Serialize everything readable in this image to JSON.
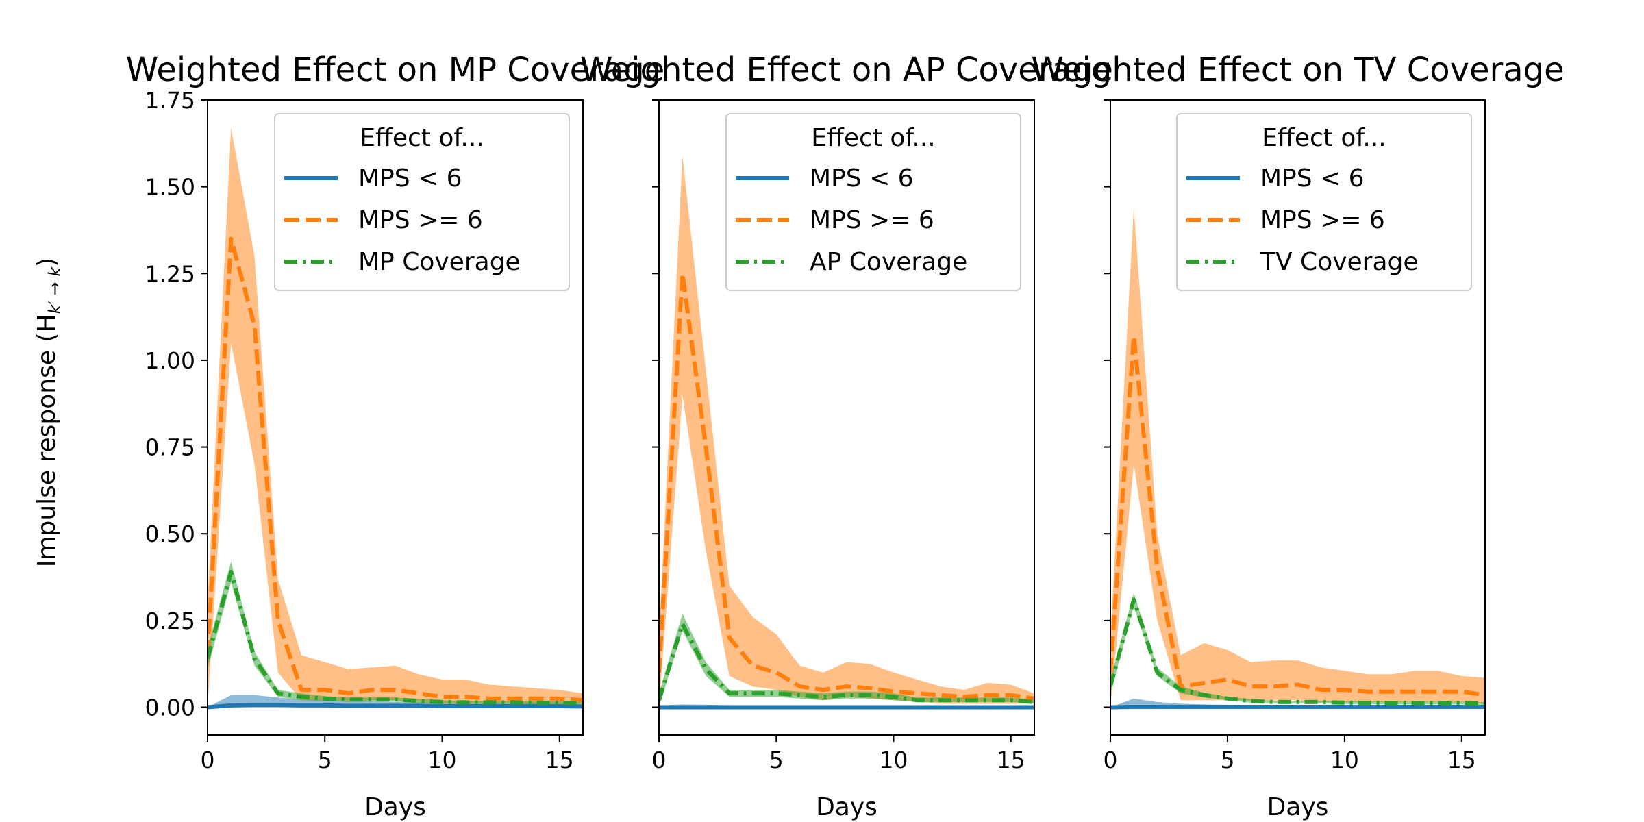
{
  "figure": {
    "ylabel": "Impulse response (H",
    "ylabel_sub": "k′ → k",
    "ylabel_close": ")"
  },
  "chart_data": [
    {
      "type": "line",
      "title": "Weighted Effect on MP Coverage",
      "xlabel": "Days",
      "ylabel": "Impulse response (H k' → k)",
      "xlim": [
        0,
        16
      ],
      "ylim": [
        -0.08,
        1.75
      ],
      "xticks": [
        "0",
        "5",
        "10",
        "15"
      ],
      "yticks": [
        "0.00",
        "0.25",
        "0.50",
        "0.75",
        "1.00",
        "1.25",
        "1.50",
        "1.75"
      ],
      "legend": {
        "title": "Effect of...",
        "position": "top-right"
      },
      "x": [
        0,
        1,
        2,
        3,
        4,
        5,
        6,
        7,
        8,
        9,
        10,
        11,
        12,
        13,
        14,
        15,
        16
      ],
      "series": [
        {
          "name": "MPS < 6",
          "style": "solid",
          "color": "#1f77b4",
          "values": [
            0.0,
            0.005,
            0.006,
            0.006,
            0.005,
            0.005,
            0.004,
            0.004,
            0.004,
            0.004,
            0.003,
            0.003,
            0.003,
            0.003,
            0.003,
            0.003,
            0.002
          ],
          "lower": [
            0.0,
            0.0,
            0.0,
            0.0,
            0.0,
            0.0,
            0.0,
            0.0,
            0.0,
            0.0,
            0.0,
            0.0,
            0.0,
            0.0,
            0.0,
            0.0,
            0.0
          ],
          "upper": [
            0.0,
            0.035,
            0.035,
            0.028,
            0.022,
            0.02,
            0.018,
            0.016,
            0.015,
            0.014,
            0.013,
            0.012,
            0.012,
            0.011,
            0.011,
            0.01,
            0.009
          ]
        },
        {
          "name": "MPS >= 6",
          "style": "dashed",
          "color": "#ff7f0e",
          "values": [
            0.15,
            1.35,
            1.1,
            0.25,
            0.05,
            0.05,
            0.04,
            0.05,
            0.05,
            0.04,
            0.03,
            0.03,
            0.025,
            0.025,
            0.025,
            0.025,
            0.02
          ],
          "lower": [
            0.0,
            1.05,
            0.7,
            0.1,
            0.02,
            0.02,
            0.015,
            0.02,
            0.02,
            0.015,
            0.01,
            0.01,
            0.01,
            0.01,
            0.01,
            0.01,
            0.01
          ],
          "upper": [
            0.3,
            1.67,
            1.3,
            0.37,
            0.15,
            0.13,
            0.11,
            0.115,
            0.12,
            0.095,
            0.08,
            0.08,
            0.065,
            0.06,
            0.055,
            0.05,
            0.04
          ]
        },
        {
          "name": "MP Coverage",
          "style": "dashdot",
          "color": "#2ca02c",
          "values": [
            0.14,
            0.39,
            0.14,
            0.04,
            0.03,
            0.025,
            0.022,
            0.022,
            0.022,
            0.018,
            0.015,
            0.014,
            0.014,
            0.014,
            0.013,
            0.013,
            0.012
          ],
          "lower": [
            0.11,
            0.36,
            0.12,
            0.03,
            0.02,
            0.018,
            0.016,
            0.016,
            0.016,
            0.013,
            0.011,
            0.01,
            0.01,
            0.01,
            0.009,
            0.009,
            0.008
          ],
          "upper": [
            0.17,
            0.42,
            0.16,
            0.05,
            0.04,
            0.032,
            0.028,
            0.028,
            0.028,
            0.024,
            0.02,
            0.018,
            0.018,
            0.018,
            0.017,
            0.017,
            0.016
          ]
        }
      ]
    },
    {
      "type": "line",
      "title": "Weighted Effect on AP Coverage",
      "xlabel": "Days",
      "xlim": [
        0,
        16
      ],
      "ylim": [
        -0.08,
        1.75
      ],
      "xticks": [
        "0",
        "5",
        "10",
        "15"
      ],
      "legend": {
        "title": "Effect of...",
        "position": "top-right"
      },
      "x": [
        0,
        1,
        2,
        3,
        4,
        5,
        6,
        7,
        8,
        9,
        10,
        11,
        12,
        13,
        14,
        15,
        16
      ],
      "series": [
        {
          "name": "MPS < 6",
          "style": "solid",
          "color": "#1f77b4",
          "values": [
            0.0,
            0.0,
            0.0,
            0.0,
            0.0,
            0.0,
            0.0,
            0.0,
            0.0,
            0.0,
            0.0,
            0.0,
            0.0,
            0.0,
            0.0,
            0.0,
            0.0
          ],
          "lower": [
            0.0,
            0.0,
            0.0,
            0.0,
            0.0,
            0.0,
            0.0,
            0.0,
            0.0,
            0.0,
            0.0,
            0.0,
            0.0,
            0.0,
            0.0,
            0.0,
            0.0
          ],
          "upper": [
            0.005,
            0.008,
            0.007,
            0.006,
            0.005,
            0.005,
            0.005,
            0.004,
            0.004,
            0.004,
            0.004,
            0.004,
            0.003,
            0.003,
            0.003,
            0.003,
            0.003
          ]
        },
        {
          "name": "MPS >= 6",
          "style": "dashed",
          "color": "#ff7f0e",
          "values": [
            0.1,
            1.25,
            0.75,
            0.2,
            0.12,
            0.1,
            0.06,
            0.05,
            0.06,
            0.055,
            0.045,
            0.04,
            0.035,
            0.03,
            0.035,
            0.035,
            0.025
          ],
          "lower": [
            0.0,
            0.9,
            0.45,
            0.09,
            0.06,
            0.05,
            0.03,
            0.02,
            0.03,
            0.025,
            0.02,
            0.015,
            0.01,
            0.01,
            0.01,
            0.01,
            0.01
          ],
          "upper": [
            0.2,
            1.59,
            0.97,
            0.35,
            0.26,
            0.21,
            0.12,
            0.1,
            0.13,
            0.125,
            0.1,
            0.08,
            0.06,
            0.05,
            0.07,
            0.065,
            0.04
          ]
        },
        {
          "name": "AP Coverage",
          "style": "dashdot",
          "color": "#2ca02c",
          "values": [
            0.02,
            0.24,
            0.11,
            0.04,
            0.04,
            0.04,
            0.035,
            0.03,
            0.035,
            0.035,
            0.03,
            0.02,
            0.02,
            0.02,
            0.02,
            0.02,
            0.015
          ],
          "lower": [
            0.0,
            0.22,
            0.09,
            0.03,
            0.03,
            0.03,
            0.025,
            0.02,
            0.025,
            0.025,
            0.02,
            0.015,
            0.015,
            0.015,
            0.015,
            0.015,
            0.01
          ],
          "upper": [
            0.04,
            0.27,
            0.13,
            0.05,
            0.05,
            0.05,
            0.045,
            0.04,
            0.045,
            0.045,
            0.04,
            0.028,
            0.028,
            0.028,
            0.028,
            0.028,
            0.022
          ]
        }
      ]
    },
    {
      "type": "line",
      "title": "Weighted Effect on TV Coverage",
      "xlabel": "Days",
      "xlim": [
        0,
        16
      ],
      "ylim": [
        -0.08,
        1.75
      ],
      "xticks": [
        "0",
        "5",
        "10",
        "15"
      ],
      "legend": {
        "title": "Effect of...",
        "position": "top-right"
      },
      "x": [
        0,
        1,
        2,
        3,
        4,
        5,
        6,
        7,
        8,
        9,
        10,
        11,
        12,
        13,
        14,
        15,
        16
      ],
      "series": [
        {
          "name": "MPS < 6",
          "style": "solid",
          "color": "#1f77b4",
          "values": [
            0.0,
            0.001,
            0.001,
            0.001,
            0.001,
            0.001,
            0.001,
            0.001,
            0.001,
            0.001,
            0.001,
            0.001,
            0.001,
            0.001,
            0.001,
            0.001,
            0.001
          ],
          "lower": [
            0.0,
            0.0,
            0.0,
            0.0,
            0.0,
            0.0,
            0.0,
            0.0,
            0.0,
            0.0,
            0.0,
            0.0,
            0.0,
            0.0,
            0.0,
            0.0,
            0.0
          ],
          "upper": [
            0.0,
            0.025,
            0.015,
            0.01,
            0.008,
            0.007,
            0.006,
            0.006,
            0.005,
            0.005,
            0.005,
            0.004,
            0.004,
            0.004,
            0.004,
            0.004,
            0.003
          ]
        },
        {
          "name": "MPS >= 6",
          "style": "dashed",
          "color": "#ff7f0e",
          "values": [
            0.1,
            1.07,
            0.4,
            0.06,
            0.07,
            0.08,
            0.06,
            0.06,
            0.065,
            0.05,
            0.05,
            0.045,
            0.045,
            0.045,
            0.045,
            0.045,
            0.035
          ],
          "lower": [
            0.0,
            0.7,
            0.25,
            0.02,
            0.02,
            0.02,
            0.02,
            0.02,
            0.02,
            0.015,
            0.015,
            0.015,
            0.015,
            0.015,
            0.015,
            0.015,
            0.01
          ],
          "upper": [
            0.2,
            1.44,
            0.5,
            0.15,
            0.185,
            0.165,
            0.13,
            0.135,
            0.135,
            0.115,
            0.105,
            0.095,
            0.095,
            0.105,
            0.105,
            0.09,
            0.085
          ]
        },
        {
          "name": "TV Coverage",
          "style": "dashdot",
          "color": "#2ca02c",
          "values": [
            0.06,
            0.31,
            0.1,
            0.05,
            0.035,
            0.025,
            0.018,
            0.015,
            0.015,
            0.015,
            0.013,
            0.013,
            0.012,
            0.012,
            0.012,
            0.012,
            0.01
          ],
          "lower": [
            0.04,
            0.29,
            0.09,
            0.04,
            0.028,
            0.02,
            0.013,
            0.011,
            0.011,
            0.011,
            0.009,
            0.009,
            0.008,
            0.008,
            0.008,
            0.008,
            0.007
          ],
          "upper": [
            0.08,
            0.33,
            0.115,
            0.06,
            0.042,
            0.03,
            0.023,
            0.019,
            0.019,
            0.019,
            0.017,
            0.017,
            0.016,
            0.016,
            0.016,
            0.016,
            0.014
          ]
        }
      ]
    }
  ]
}
